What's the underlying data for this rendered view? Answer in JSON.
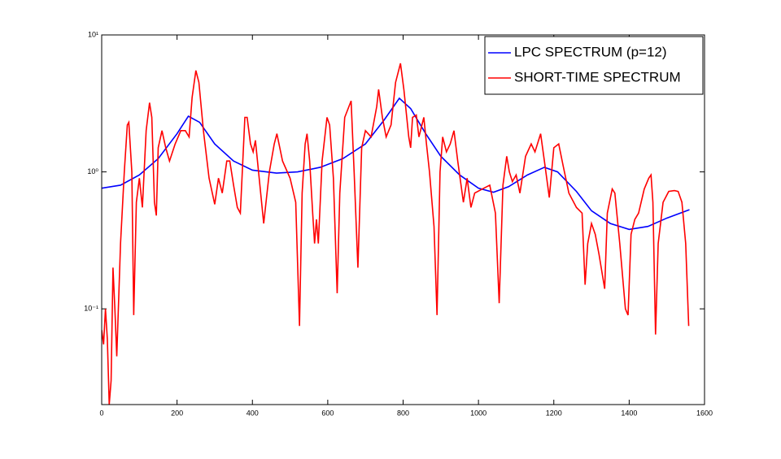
{
  "chart_data": {
    "type": "line",
    "yscale": "log",
    "xlim": [
      0,
      1600
    ],
    "ylim": [
      0.02,
      10
    ],
    "xticks": [
      0,
      200,
      400,
      600,
      800,
      1000,
      1200,
      1400,
      1600
    ],
    "yticks": [
      {
        "value": 0.1,
        "label": "10⁻¹"
      },
      {
        "value": 1,
        "label": "10⁰"
      },
      {
        "value": 10,
        "label": "10¹"
      }
    ],
    "legend": "top-right",
    "series": [
      {
        "name": "LPC SPECTRUM (p=12)",
        "color": "#0000ff",
        "x": [
          0,
          50,
          100,
          150,
          200,
          230,
          260,
          300,
          350,
          400,
          464,
          520,
          580,
          640,
          700,
          750,
          790,
          820,
          860,
          900,
          950,
          1000,
          1040,
          1080,
          1130,
          1175,
          1210,
          1260,
          1300,
          1350,
          1400,
          1450,
          1500,
          1560
        ],
        "values": [
          0.76,
          0.8,
          0.95,
          1.25,
          1.9,
          2.55,
          2.3,
          1.6,
          1.2,
          1.03,
          0.98,
          1.0,
          1.08,
          1.25,
          1.6,
          2.4,
          3.45,
          2.9,
          1.9,
          1.3,
          0.95,
          0.76,
          0.71,
          0.78,
          0.95,
          1.08,
          1.0,
          0.72,
          0.52,
          0.42,
          0.38,
          0.4,
          0.46,
          0.53
        ]
      },
      {
        "name": "SHORT-TIME SPECTRUM",
        "color": "#ff0000",
        "x": [
          0,
          5,
          10,
          15,
          20,
          25,
          30,
          35,
          40,
          50,
          60,
          68,
          72,
          80,
          85,
          92,
          100,
          108,
          118,
          127,
          133,
          140,
          145,
          150,
          160,
          170,
          180,
          195,
          210,
          222,
          232,
          240,
          250,
          258,
          270,
          285,
          300,
          310,
          320,
          332,
          340,
          350,
          360,
          368,
          380,
          386,
          395,
          402,
          408,
          418,
          430,
          445,
          458,
          465,
          480,
          500,
          515,
          525,
          532,
          540,
          545,
          552,
          560,
          565,
          570,
          575,
          585,
          598,
          605,
          615,
          625,
          632,
          645,
          662,
          670,
          680,
          690,
          700,
          715,
          730,
          735,
          745,
          755,
          768,
          780,
          793,
          802,
          815,
          820,
          825,
          835,
          842,
          855,
          862,
          870,
          882,
          890,
          898,
          905,
          915,
          925,
          935,
          945,
          960,
          970,
          980,
          990,
          1010,
          1030,
          1045,
          1055,
          1065,
          1075,
          1082,
          1090,
          1100,
          1110,
          1125,
          1140,
          1150,
          1165,
          1175,
          1188,
          1200,
          1213,
          1225,
          1240,
          1260,
          1275,
          1283,
          1290,
          1300,
          1310,
          1320,
          1335,
          1342,
          1355,
          1362,
          1375,
          1390,
          1397,
          1405,
          1415,
          1425,
          1440,
          1452,
          1458,
          1463,
          1470,
          1477,
          1490,
          1505,
          1520,
          1530,
          1540,
          1550,
          1558
        ],
        "values": [
          0.07,
          0.055,
          0.1,
          0.06,
          0.02,
          0.03,
          0.2,
          0.1,
          0.045,
          0.3,
          1.0,
          2.2,
          2.3,
          1.0,
          0.09,
          0.6,
          0.9,
          0.55,
          2.0,
          3.2,
          2.5,
          0.6,
          0.48,
          1.5,
          2.0,
          1.5,
          1.2,
          1.6,
          2.0,
          2.0,
          1.8,
          3.5,
          5.5,
          4.5,
          2.0,
          0.9,
          0.58,
          0.9,
          0.7,
          1.2,
          1.2,
          0.8,
          0.55,
          0.5,
          2.5,
          2.5,
          1.6,
          1.4,
          1.7,
          0.9,
          0.42,
          1.0,
          1.6,
          1.9,
          1.2,
          0.9,
          0.6,
          0.075,
          0.7,
          1.6,
          1.9,
          1.2,
          0.5,
          0.3,
          0.45,
          0.3,
          1.2,
          2.5,
          2.2,
          0.9,
          0.13,
          0.7,
          2.5,
          3.3,
          1.0,
          0.2,
          1.5,
          2.0,
          1.8,
          3.0,
          4.0,
          2.5,
          1.8,
          2.2,
          4.5,
          6.2,
          4.0,
          1.8,
          1.5,
          2.5,
          2.6,
          1.8,
          2.5,
          1.6,
          1.0,
          0.4,
          0.09,
          1.0,
          1.8,
          1.4,
          1.6,
          2.0,
          1.2,
          0.6,
          0.9,
          0.55,
          0.7,
          0.75,
          0.8,
          0.5,
          0.11,
          0.8,
          1.3,
          1.0,
          0.85,
          0.95,
          0.7,
          1.3,
          1.6,
          1.4,
          1.9,
          1.2,
          0.65,
          1.5,
          1.6,
          1.1,
          0.7,
          0.55,
          0.5,
          0.15,
          0.3,
          0.42,
          0.35,
          0.25,
          0.14,
          0.5,
          0.75,
          0.7,
          0.3,
          0.1,
          0.09,
          0.35,
          0.45,
          0.5,
          0.75,
          0.9,
          0.95,
          0.6,
          0.065,
          0.3,
          0.6,
          0.72,
          0.73,
          0.72,
          0.6,
          0.3,
          0.075
        ]
      }
    ]
  }
}
